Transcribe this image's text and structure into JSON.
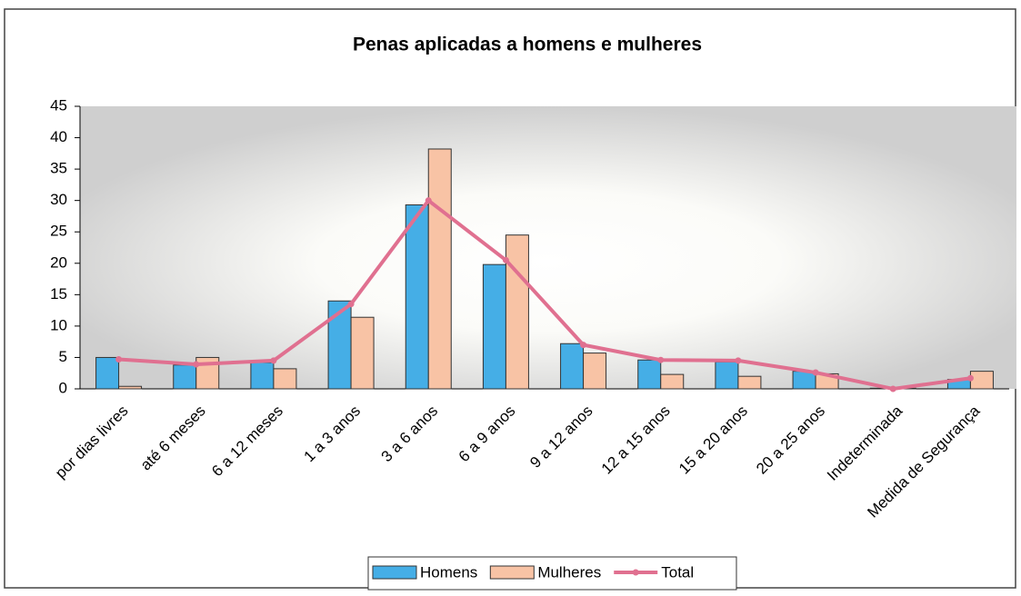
{
  "chart_data": {
    "type": "bar",
    "title": "Penas aplicadas a homens e mulheres",
    "categories": [
      "por dias livres",
      "até 6 meses",
      "6 a 12 meses",
      "1 a 3 anos",
      "3 a 6 anos",
      "6 a 9 anos",
      "9 a 12 anos",
      "12 a 15 anos",
      "15 a 20 anos",
      "20 a 25 anos",
      "Indeterminada",
      "Medida de Segurança"
    ],
    "series": [
      {
        "name": "Homens",
        "type": "bar",
        "color": "#45aee6",
        "values": [
          5,
          3.8,
          4.2,
          14,
          29.3,
          19.8,
          7.2,
          4.6,
          4.3,
          2.8,
          0.1,
          1.5
        ]
      },
      {
        "name": "Mulheres",
        "type": "bar",
        "color": "#f8c3a5",
        "values": [
          0.4,
          5,
          3.2,
          11.4,
          38.2,
          24.5,
          5.7,
          2.3,
          2,
          2.4,
          0.1,
          2.8
        ]
      },
      {
        "name": "Total",
        "type": "line",
        "color": "#e07090",
        "values": [
          4.7,
          3.9,
          4.5,
          13.5,
          30,
          20.5,
          7,
          4.6,
          4.5,
          2.6,
          0,
          1.7
        ]
      }
    ],
    "ylim": [
      0,
      45
    ],
    "yticks": [
      0,
      5,
      10,
      15,
      20,
      25,
      30,
      35,
      40,
      45
    ],
    "legend": "bottom"
  }
}
